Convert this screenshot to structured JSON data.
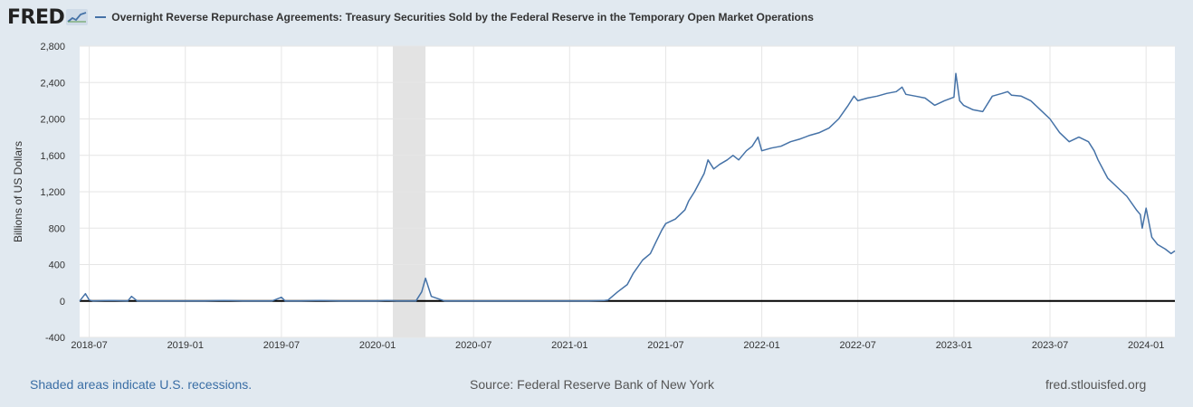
{
  "header": {
    "logo_text": "FRED",
    "logo_icon": "fred-chart-icon"
  },
  "colors": {
    "series": "#4572a7",
    "recession": "#e3e3e3",
    "background": "#e1e9f0",
    "plot_bg": "#ffffff",
    "grid": "#e6e6e6"
  },
  "chart_data": {
    "type": "line",
    "title": "Overnight Reverse Repurchase Agreements: Treasury Securities Sold by the Federal Reserve in the Temporary Open Market Operations",
    "xlabel": "",
    "ylabel": "Billions of US Dollars",
    "ylim": [
      -400,
      2800
    ],
    "yticks": [
      -400,
      0,
      400,
      800,
      1200,
      1600,
      2000,
      2400,
      2800
    ],
    "ytick_labels": [
      "-400",
      "0",
      "400",
      "800",
      "1,200",
      "1,600",
      "2,000",
      "2,400",
      "2,800"
    ],
    "xlim": [
      2018.45,
      2024.15
    ],
    "xticks": [
      2018.5,
      2019.0,
      2019.5,
      2020.0,
      2020.5,
      2021.0,
      2021.5,
      2022.0,
      2022.5,
      2023.0,
      2023.5,
      2024.0
    ],
    "xtick_labels": [
      "2018-07",
      "2019-01",
      "2019-07",
      "2020-01",
      "2020-07",
      "2021-01",
      "2021-07",
      "2022-01",
      "2022-07",
      "2023-01",
      "2023-07",
      "2024-01"
    ],
    "recessions": [
      [
        2020.08,
        2020.25
      ]
    ],
    "grid": true,
    "legend_position": "top-left",
    "series": [
      {
        "name": "Overnight Reverse Repurchase Agreements: Treasury Securities Sold by the Federal Reserve in the Temporary Open Market Operations",
        "x": [
          2018.45,
          2018.48,
          2018.5,
          2018.52,
          2018.6,
          2018.7,
          2018.72,
          2018.75,
          2018.8,
          2018.9,
          2019.0,
          2019.1,
          2019.2,
          2019.3,
          2019.45,
          2019.5,
          2019.52,
          2019.6,
          2019.7,
          2019.8,
          2019.9,
          2020.0,
          2020.05,
          2020.1,
          2020.15,
          2020.2,
          2020.23,
          2020.25,
          2020.28,
          2020.35,
          2020.5,
          2020.7,
          2020.9,
          2021.0,
          2021.1,
          2021.18,
          2021.2,
          2021.25,
          2021.3,
          2021.33,
          2021.38,
          2021.42,
          2021.45,
          2021.48,
          2021.5,
          2021.55,
          2021.6,
          2021.62,
          2021.65,
          2021.7,
          2021.72,
          2021.75,
          2021.78,
          2021.82,
          2021.85,
          2021.88,
          2021.92,
          2021.95,
          2021.98,
          2022.0,
          2022.05,
          2022.1,
          2022.15,
          2022.2,
          2022.25,
          2022.3,
          2022.35,
          2022.4,
          2022.45,
          2022.48,
          2022.5,
          2022.55,
          2022.6,
          2022.65,
          2022.7,
          2022.73,
          2022.75,
          2022.8,
          2022.85,
          2022.9,
          2022.95,
          2023.0,
          2023.01,
          2023.03,
          2023.05,
          2023.1,
          2023.15,
          2023.2,
          2023.25,
          2023.28,
          2023.3,
          2023.35,
          2023.4,
          2023.45,
          2023.5,
          2023.55,
          2023.6,
          2023.65,
          2023.7,
          2023.73,
          2023.75,
          2023.8,
          2023.85,
          2023.9,
          2023.95,
          2023.97,
          2023.98,
          2024.0,
          2024.03,
          2024.06,
          2024.1,
          2024.13,
          2024.15
        ],
        "values": [
          0,
          80,
          10,
          0,
          5,
          0,
          50,
          0,
          0,
          0,
          0,
          0,
          5,
          0,
          0,
          40,
          0,
          0,
          5,
          0,
          0,
          0,
          5,
          0,
          0,
          0,
          100,
          250,
          50,
          0,
          0,
          0,
          0,
          0,
          0,
          5,
          10,
          100,
          180,
          300,
          450,
          520,
          650,
          780,
          850,
          900,
          1000,
          1100,
          1200,
          1400,
          1550,
          1450,
          1500,
          1550,
          1600,
          1550,
          1650,
          1700,
          1800,
          1650,
          1680,
          1700,
          1750,
          1780,
          1820,
          1850,
          1900,
          2000,
          2150,
          2250,
          2200,
          2230,
          2250,
          2280,
          2300,
          2350,
          2270,
          2250,
          2230,
          2150,
          2200,
          2240,
          2500,
          2200,
          2150,
          2100,
          2080,
          2250,
          2280,
          2300,
          2260,
          2250,
          2200,
          2100,
          2000,
          1850,
          1750,
          1800,
          1750,
          1650,
          1550,
          1350,
          1250,
          1150,
          1000,
          950,
          800,
          1020,
          700,
          620,
          570,
          520,
          550
        ]
      }
    ]
  },
  "footer": {
    "recession_note": "Shaded areas indicate U.S. recessions.",
    "source": "Source: Federal Reserve Bank of New York",
    "site": "fred.stlouisfed.org"
  }
}
